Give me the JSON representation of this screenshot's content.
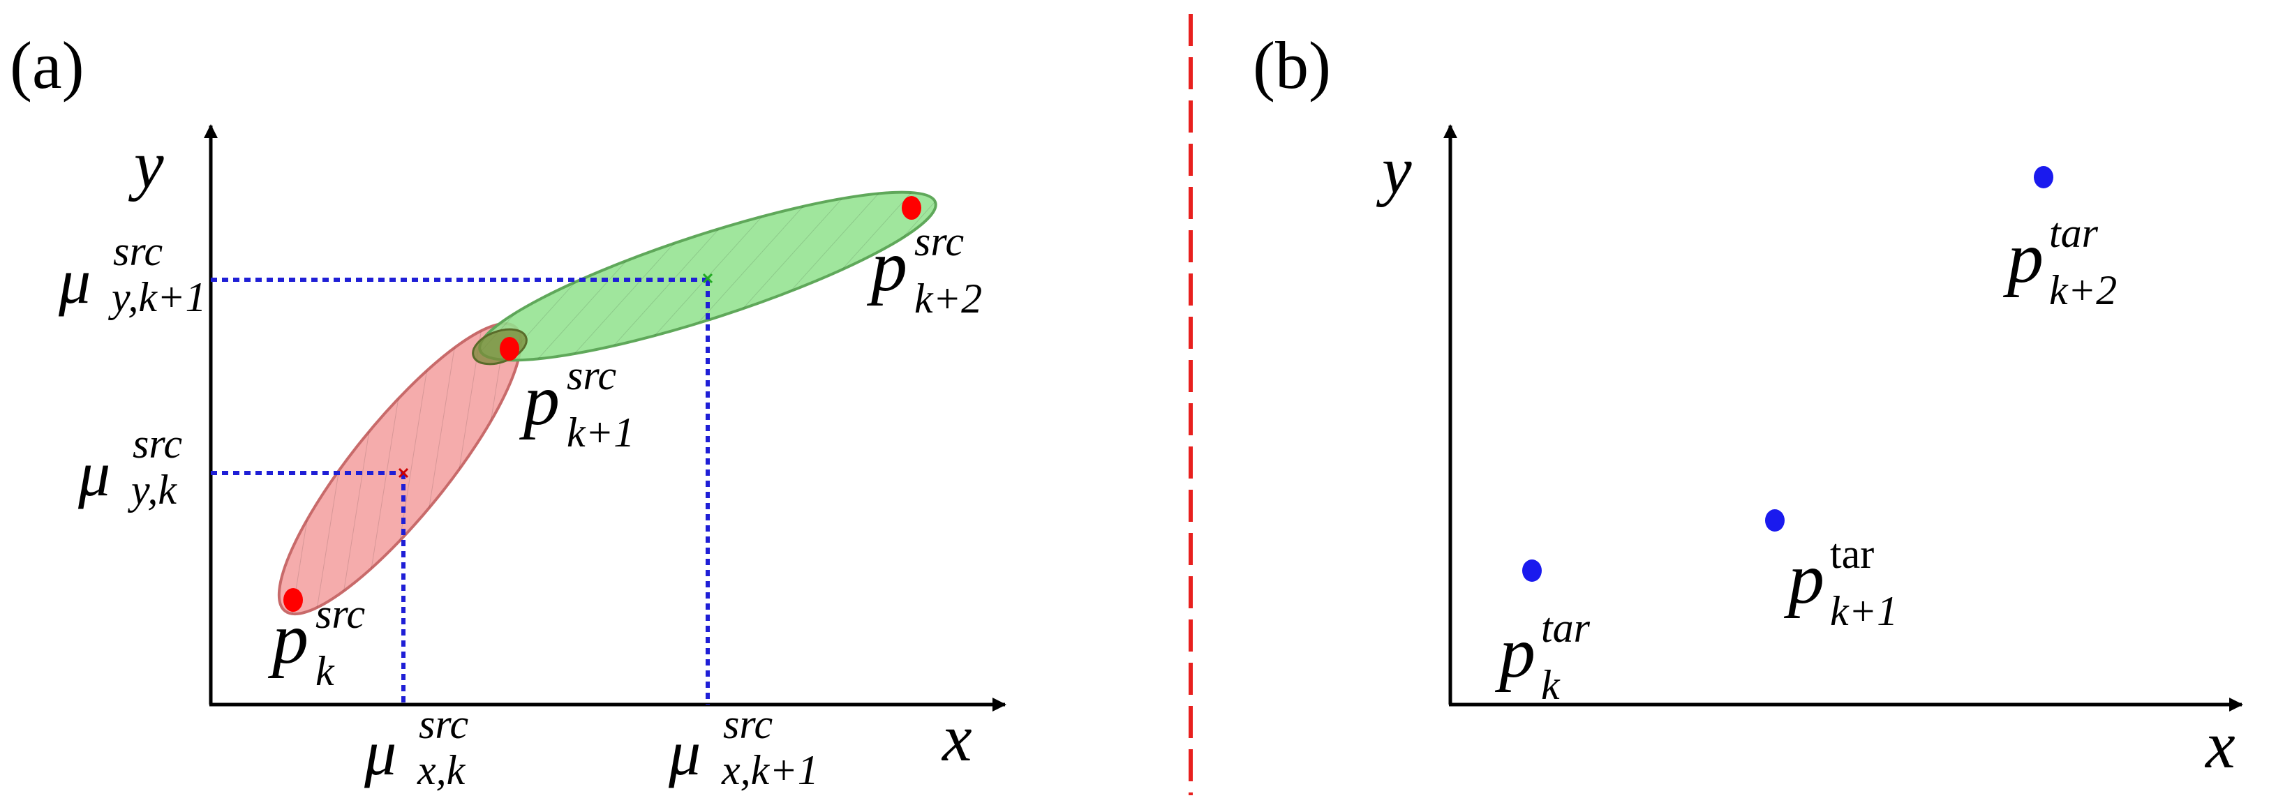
{
  "panel_a": {
    "label": "(a)",
    "x_axis": "x",
    "y_axis": "y",
    "mu_y_k1": {
      "base": "μ",
      "sup": "src",
      "sub": "y,k+1"
    },
    "mu_y_k": {
      "base": "μ",
      "sup": "src",
      "sub": "y,k"
    },
    "mu_x_k": {
      "base": "μ",
      "sup": "src",
      "sub": "x,k"
    },
    "mu_x_k1": {
      "base": "μ",
      "sup": "src",
      "sub": "x,k+1"
    },
    "p_k": {
      "base": "p",
      "sup": "src",
      "sub": "k"
    },
    "p_k1": {
      "base": "p",
      "sup": "src",
      "sub": "k+1"
    },
    "p_k2": {
      "base": "p",
      "sup": "src",
      "sub": "k+2"
    }
  },
  "panel_b": {
    "label": "(b)",
    "x_axis": "x",
    "y_axis": "y",
    "p_k": {
      "base": "p",
      "sup": "tar",
      "sub": "k"
    },
    "p_k1": {
      "base": "p",
      "sup": "tar",
      "sub": "k+1"
    },
    "p_k2": {
      "base": "p",
      "sup": "tar",
      "sub": "k+2"
    }
  },
  "colors": {
    "axis": "#000000",
    "divider": "#e8201e",
    "src_point": "#ff0000",
    "tar_point": "#1a1aee",
    "guide": "#1f1fd6",
    "ellipse_red_fill": "#f4a3a3",
    "ellipse_red_stroke": "#c86a6a",
    "ellipse_green_fill": "#93e28f",
    "ellipse_green_stroke": "#5fa85a"
  }
}
